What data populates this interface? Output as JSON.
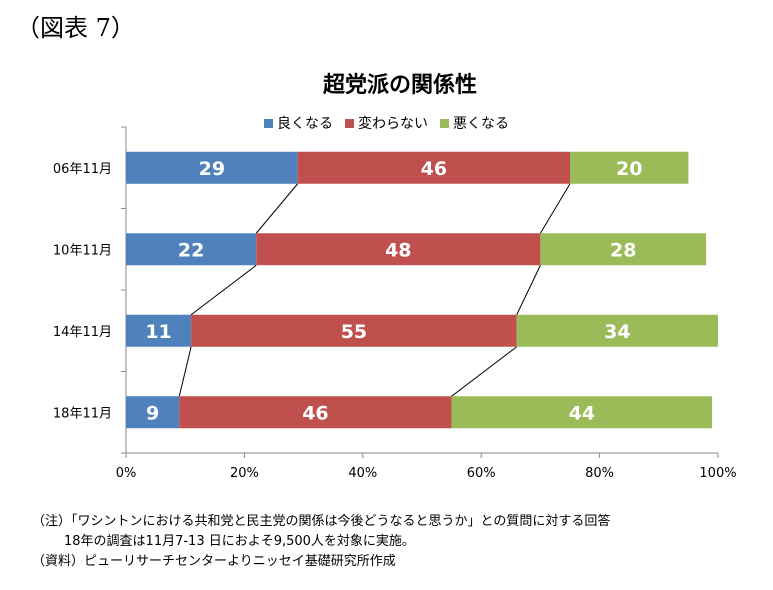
{
  "figure_label": "（図表 7）",
  "chart_data": {
    "type": "bar",
    "orientation": "horizontal",
    "stacked": true,
    "percent": true,
    "title": "超党派の関係性",
    "categories": [
      "06年11月",
      "10年11月",
      "14年11月",
      "18年11月"
    ],
    "series": [
      {
        "name": "良くなる",
        "color": "#4f81bd",
        "values": [
          29,
          22,
          11,
          9
        ]
      },
      {
        "name": "変わらない",
        "color": "#c0504d",
        "values": [
          46,
          48,
          55,
          46
        ]
      },
      {
        "name": "悪くなる",
        "color": "#9bbb59",
        "values": [
          20,
          28,
          34,
          44
        ]
      }
    ],
    "xlim": [
      0,
      100
    ],
    "xticks": [
      "0%",
      "20%",
      "40%",
      "60%",
      "80%",
      "100%"
    ],
    "legend": "top",
    "grid": false,
    "series_lines": true
  },
  "notes": [
    "（注）「ワシントンにおける共和党と民主党の関係は今後どうなると思うか」との質問に対する回答",
    "18年の調査は11月7-13 日におよそ9,500人を対象に実施。",
    "（資料）ピューリサーチセンターよりニッセイ基礎研究所作成"
  ]
}
